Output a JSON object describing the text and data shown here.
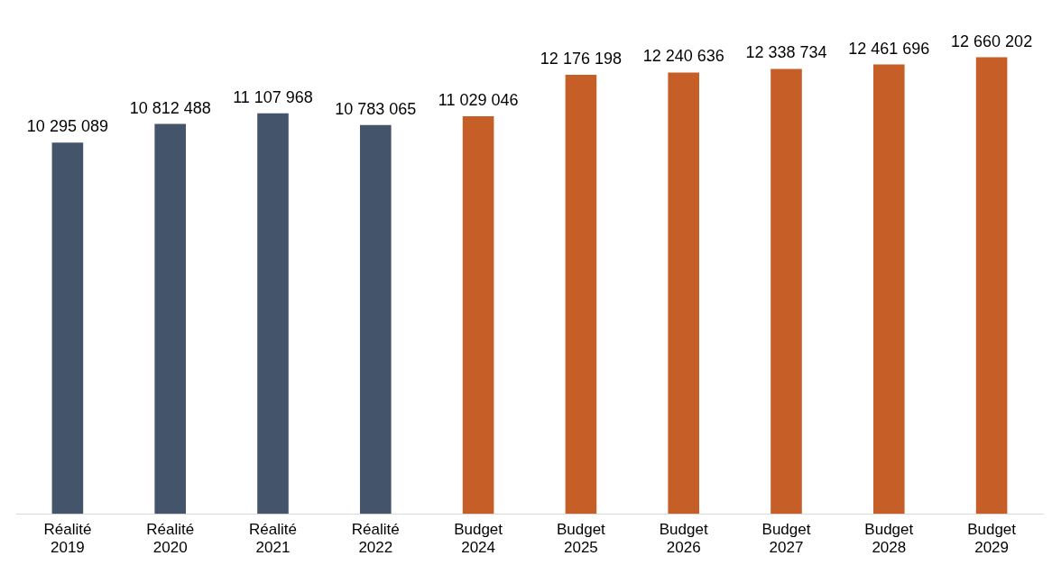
{
  "chart_data": {
    "type": "bar",
    "categories": [
      "Réalité 2019",
      "Réalité 2020",
      "Réalité 2021",
      "Réalité 2022",
      "Budget 2024",
      "Budget 2025",
      "Budget 2026",
      "Budget 2027",
      "Budget 2028",
      "Budget 2029"
    ],
    "values": [
      10295089,
      10812488,
      11107968,
      10783065,
      11029046,
      12176198,
      12240636,
      12338734,
      12461696,
      12660202
    ],
    "colors": [
      "#44546a",
      "#44546a",
      "#44546a",
      "#44546a",
      "#c55f27",
      "#c55f27",
      "#c55f27",
      "#c55f27",
      "#c55f27",
      "#c55f27"
    ],
    "value_labels": [
      "10 295 089",
      "10 812 488",
      "11 107 968",
      "10 783 065",
      "11 029 046",
      "12 176 198",
      "12 240 636",
      "12 338 734",
      "12 461 696",
      "12 660 202"
    ],
    "relative": false,
    "grid": false,
    "legend": false
  }
}
